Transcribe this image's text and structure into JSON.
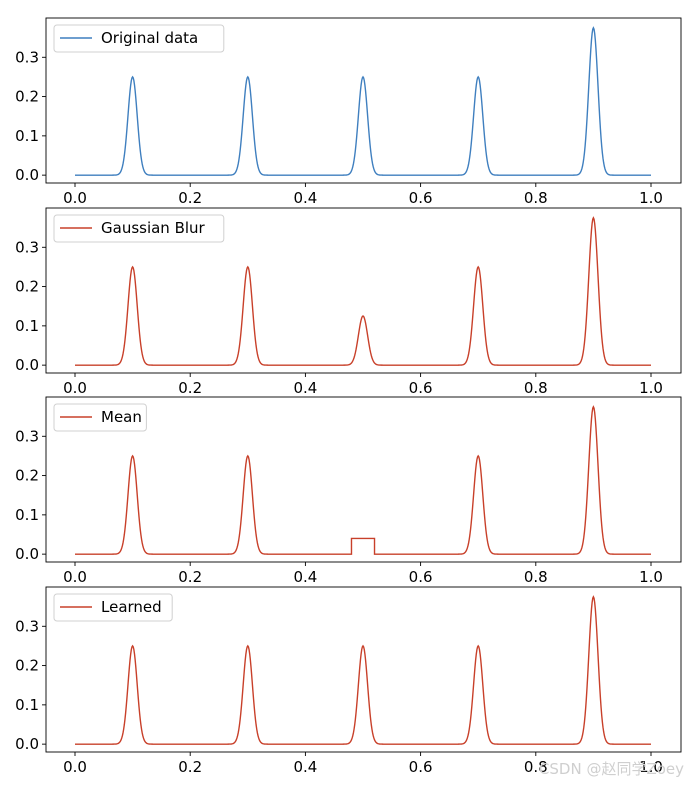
{
  "chart_data": [
    {
      "type": "line",
      "legend": "Original data",
      "legend_position": "top-left",
      "color": "#3f7fbf",
      "x_range": [
        0.0,
        1.0
      ],
      "ylim": [
        -0.02,
        0.4
      ],
      "xticks": [
        "0.0",
        "0.2",
        "0.4",
        "0.6",
        "0.8",
        "1.0"
      ],
      "yticks": [
        "0.0",
        "0.1",
        "0.2",
        "0.3"
      ],
      "peaks": [
        {
          "center": 0.1,
          "height": 0.25
        },
        {
          "center": 0.3,
          "height": 0.25
        },
        {
          "center": 0.5,
          "height": 0.25
        },
        {
          "center": 0.7,
          "height": 0.25
        },
        {
          "center": 0.9,
          "height": 0.375
        }
      ],
      "peak_width": 0.008,
      "plateau": null
    },
    {
      "type": "line",
      "legend": "Gaussian Blur",
      "legend_position": "top-left",
      "color": "#c8402a",
      "x_range": [
        0.0,
        1.0
      ],
      "ylim": [
        -0.02,
        0.4
      ],
      "xticks": [
        "0.0",
        "0.2",
        "0.4",
        "0.6",
        "0.8",
        "1.0"
      ],
      "yticks": [
        "0.0",
        "0.1",
        "0.2",
        "0.3"
      ],
      "peaks": [
        {
          "center": 0.1,
          "height": 0.25
        },
        {
          "center": 0.3,
          "height": 0.25
        },
        {
          "center": 0.5,
          "height": 0.125
        },
        {
          "center": 0.7,
          "height": 0.25
        },
        {
          "center": 0.9,
          "height": 0.375
        }
      ],
      "peak_width": 0.008,
      "plateau": null
    },
    {
      "type": "line",
      "legend": "Mean",
      "legend_position": "top-left",
      "color": "#c8402a",
      "x_range": [
        0.0,
        1.0
      ],
      "ylim": [
        -0.02,
        0.4
      ],
      "xticks": [
        "0.0",
        "0.2",
        "0.4",
        "0.6",
        "0.8",
        "1.0"
      ],
      "yticks": [
        "0.0",
        "0.1",
        "0.2",
        "0.3"
      ],
      "peaks": [
        {
          "center": 0.1,
          "height": 0.25
        },
        {
          "center": 0.3,
          "height": 0.25
        },
        {
          "center": 0.7,
          "height": 0.25
        },
        {
          "center": 0.9,
          "height": 0.375
        }
      ],
      "peak_width": 0.008,
      "plateau": {
        "start": 0.48,
        "end": 0.52,
        "value": 0.04
      }
    },
    {
      "type": "line",
      "legend": "Learned",
      "legend_position": "top-left",
      "color": "#c8402a",
      "x_range": [
        0.0,
        1.0
      ],
      "ylim": [
        -0.02,
        0.4
      ],
      "xticks": [
        "0.0",
        "0.2",
        "0.4",
        "0.6",
        "0.8",
        "1.0"
      ],
      "yticks": [
        "0.0",
        "0.1",
        "0.2",
        "0.3"
      ],
      "peaks": [
        {
          "center": 0.1,
          "height": 0.25
        },
        {
          "center": 0.3,
          "height": 0.25
        },
        {
          "center": 0.5,
          "height": 0.25
        },
        {
          "center": 0.7,
          "height": 0.25
        },
        {
          "center": 0.9,
          "height": 0.375
        }
      ],
      "peak_width": 0.008,
      "plateau": null
    }
  ],
  "watermark": "CSDN @赵同学Zoey"
}
